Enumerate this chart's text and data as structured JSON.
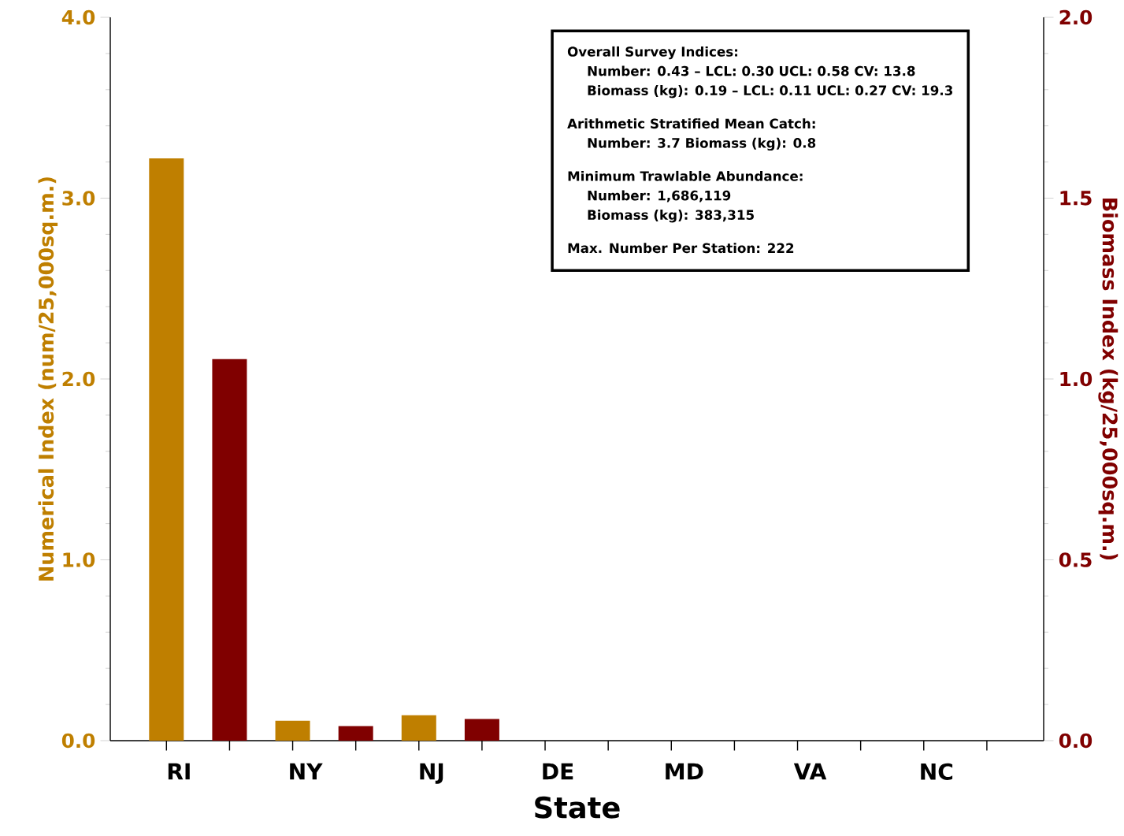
{
  "chart_data": {
    "type": "bar",
    "categories": [
      "RI",
      "NY",
      "NJ",
      "DE",
      "MD",
      "VA",
      "NC"
    ],
    "series": [
      {
        "color": "#bf7f00",
        "values": [
          3.22,
          0.11,
          0.14,
          0,
          0,
          0,
          0
        ]
      },
      {
        "color": "#800000",
        "axis": "y2",
        "values": [
          1.055,
          0.04,
          0.06,
          0,
          0,
          0,
          0
        ]
      }
    ],
    "xlabel": "State",
    "ylabel": "Numerical Index (num/25,000sq.m.)",
    "y2label": "Biomass Index (kg/25,000sq.m.)",
    "ylim": [
      0,
      4
    ],
    "yticks": [
      {
        "value": 0,
        "label": "0.0"
      },
      {
        "value": 1,
        "label": "1.0"
      },
      {
        "value": 2,
        "label": "2.0"
      },
      {
        "value": 3,
        "label": "3.0"
      },
      {
        "value": 4,
        "label": "4.0"
      }
    ],
    "y2lim": [
      0,
      2
    ],
    "y2ticks": [
      {
        "value": 0,
        "label": "0.0"
      },
      {
        "value": 0.5,
        "label": "0.5"
      },
      {
        "value": 1,
        "label": "1.0"
      },
      {
        "value": 1.5,
        "label": "1.5"
      },
      {
        "value": 2,
        "label": "2.0"
      }
    ],
    "annotations": [
      "Overall Survey Indices:",
      "Number: 0.43 – LCL: 0.30 UCL: 0.58 CV: 13.8",
      "Biomass (kg): 0.19 – LCL: 0.11 UCL: 0.27 CV: 19.3",
      "Arithmetic Stratified Mean Catch:",
      "Number: 3.7 Biomass (kg): 0.8",
      "Minimum Trawlable Abundance:",
      "Number: 1,686,119",
      "Biomass (kg): 383,315",
      "Max. Number Per Station: 222"
    ]
  }
}
